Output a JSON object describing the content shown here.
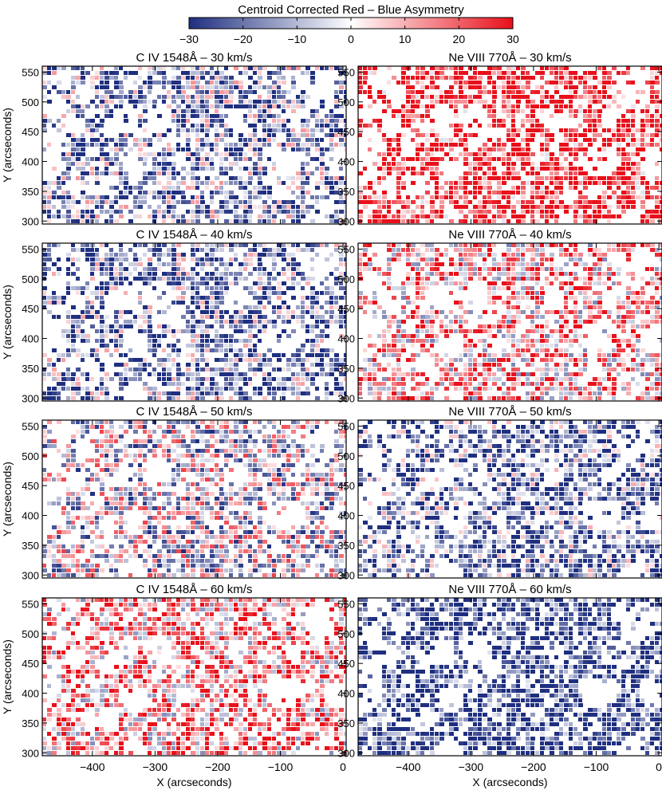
{
  "colorbar": {
    "title": "Centroid Corrected Red – Blue Asymmetry",
    "range": [
      -30,
      30
    ],
    "ticks": [
      -30,
      -20,
      -10,
      0,
      10,
      20,
      30
    ],
    "colors": {
      "low": "#1f2f80",
      "mid": "#ffffff",
      "high": "#e8101a"
    }
  },
  "chart_data": [
    {
      "type": "heatmap",
      "title": "C IV 1548Å  – 30 km/s",
      "ylabel": "Y (arcseconds)",
      "xlabel": "",
      "xlim": [
        -480,
        5
      ],
      "ylim": [
        295,
        560
      ],
      "xticks": [
        -400,
        -300,
        -200,
        -100,
        0
      ],
      "yticks": [
        300,
        350,
        400,
        450,
        500,
        550
      ],
      "bias": -0.45
    },
    {
      "type": "heatmap",
      "title": "Ne VIII 770Å – 30 km/s",
      "ylabel": "",
      "xlabel": "",
      "xlim": [
        -480,
        5
      ],
      "ylim": [
        295,
        560
      ],
      "xticks": [
        -400,
        -300,
        -200,
        -100,
        0
      ],
      "yticks": [
        300,
        350,
        400,
        450,
        500,
        550
      ],
      "bias": 0.75
    },
    {
      "type": "heatmap",
      "title": "C IV 1548Å – 40 km/s",
      "ylabel": "Y (arcseconds)",
      "xlabel": "",
      "xlim": [
        -480,
        5
      ],
      "ylim": [
        295,
        560
      ],
      "xticks": [
        -400,
        -300,
        -200,
        -100,
        0
      ],
      "yticks": [
        300,
        350,
        400,
        450,
        500,
        550
      ],
      "bias": -0.5
    },
    {
      "type": "heatmap",
      "title": "Ne VIII 770Å – 40 km/s",
      "ylabel": "",
      "xlabel": "",
      "xlim": [
        -480,
        5
      ],
      "ylim": [
        295,
        560
      ],
      "xticks": [
        -400,
        -300,
        -200,
        -100,
        0
      ],
      "yticks": [
        300,
        350,
        400,
        450,
        500,
        550
      ],
      "bias": 0.3
    },
    {
      "type": "heatmap",
      "title": "C IV 1548Å – 50 km/s",
      "ylabel": "Y (arcseconds)",
      "xlabel": "",
      "xlim": [
        -480,
        5
      ],
      "ylim": [
        295,
        560
      ],
      "xticks": [
        -400,
        -300,
        -200,
        -100,
        0
      ],
      "yticks": [
        300,
        350,
        400,
        450,
        500,
        550
      ],
      "bias": -0.1
    },
    {
      "type": "heatmap",
      "title": "Ne VIII 770Å – 50 km/s",
      "ylabel": "",
      "xlabel": "",
      "xlim": [
        -480,
        5
      ],
      "ylim": [
        295,
        560
      ],
      "xticks": [
        -400,
        -300,
        -200,
        -100,
        0
      ],
      "yticks": [
        300,
        350,
        400,
        450,
        500,
        550
      ],
      "bias": -0.55
    },
    {
      "type": "heatmap",
      "title": "C IV 1548Å – 60 km/s",
      "ylabel": "Y (arcseconds)",
      "xlabel": "X (arcseconds)",
      "xlim": [
        -480,
        5
      ],
      "ylim": [
        295,
        560
      ],
      "xticks": [
        -400,
        -300,
        -200,
        -100,
        0
      ],
      "yticks": [
        300,
        350,
        400,
        450,
        500,
        550
      ],
      "bias": 0.35
    },
    {
      "type": "heatmap",
      "title": "Ne VIII 770Å – 60 km/s",
      "ylabel": "",
      "xlabel": "X (arcseconds)",
      "xlim": [
        -480,
        5
      ],
      "ylim": [
        295,
        560
      ],
      "xticks": [
        -400,
        -300,
        -200,
        -100,
        0
      ],
      "yticks": [
        300,
        350,
        400,
        450,
        500,
        550
      ],
      "bias": -0.8
    }
  ]
}
